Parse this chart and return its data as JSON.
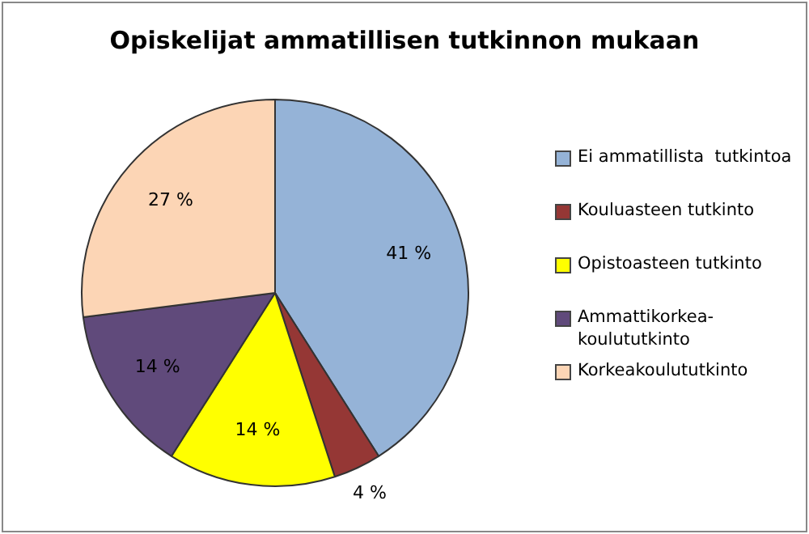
{
  "chart_data": {
    "type": "pie",
    "title": "Opiskelijat ammatillisen tutkinnon mukaan",
    "categories": [
      "Ei ammatillista  tutkintoa",
      "Kouluasteen tutkinto",
      "Opistoasteen tutkinto",
      "Ammattikorkea-koulututkinto",
      "Korkeakoulututkinto"
    ],
    "values": [
      41,
      4,
      14,
      14,
      27
    ],
    "colors": [
      "#95b3d7",
      "#953735",
      "#ffff00",
      "#604a7b",
      "#fcd5b5"
    ],
    "value_labels": [
      "41 %",
      "4 %",
      "14 %",
      "14 %",
      "27 %"
    ],
    "legend": "right"
  }
}
